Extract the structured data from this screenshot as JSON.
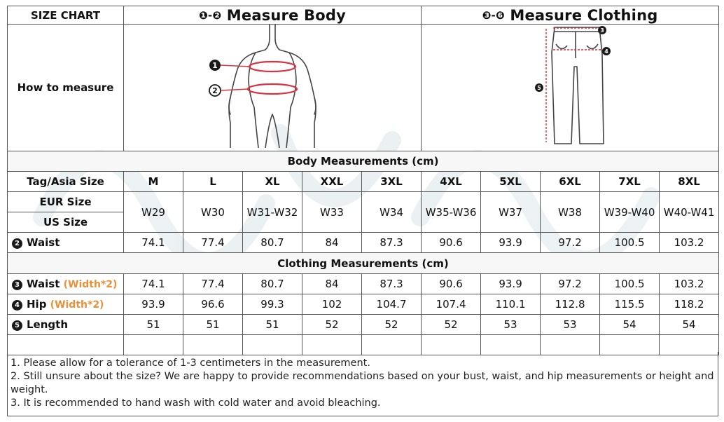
{
  "header": {
    "size_chart": "SIZE CHART",
    "body_num": "❶-❷",
    "body_title": "Measure Body",
    "clothing_num": "❸-❻",
    "clothing_title": "Measure Clothing"
  },
  "how_to_measure": "How to measure",
  "body_figure": {
    "marker_1": "1",
    "marker_2": "2"
  },
  "pants_figure": {
    "marker_3": "3",
    "marker_4": "4",
    "marker_5": "5"
  },
  "body_section_title": "Body Measurements (cm)",
  "clothing_section_title": "Clothing Measurements  (cm)",
  "size_row": {
    "label": "Tag/Asia Size",
    "values": [
      "M",
      "L",
      "XL",
      "XXL",
      "3XL",
      "4XL",
      "5XL",
      "6XL",
      "7XL",
      "8XL"
    ]
  },
  "eur_label": "EUR Size",
  "us_label": "US Size",
  "eur_us_values": [
    "W29",
    "W30",
    "W31-W32",
    "W33",
    "W34",
    "W35-W36",
    "W37",
    "W38",
    "W39-W40",
    "W40-W41"
  ],
  "body_waist": {
    "num": "2",
    "label": "Waist",
    "values": [
      "74.1",
      "77.4",
      "80.7",
      "84",
      "87.3",
      "90.6",
      "93.9",
      "97.2",
      "100.5",
      "103.2"
    ]
  },
  "clothing_waist": {
    "num": "3",
    "label": "Waist",
    "note": "(Width*2)",
    "values": [
      "74.1",
      "77.4",
      "80.7",
      "84",
      "87.3",
      "90.6",
      "93.9",
      "97.2",
      "100.5",
      "103.2"
    ]
  },
  "clothing_hip": {
    "num": "4",
    "label": "Hip",
    "note": "(Width*2)",
    "values": [
      "93.9",
      "96.6",
      "99.3",
      "102",
      "104.7",
      "107.4",
      "110.1",
      "112.8",
      "115.5",
      "118.2"
    ]
  },
  "clothing_length": {
    "num": "5",
    "label": "Length",
    "values": [
      "51",
      "51",
      "51",
      "52",
      "52",
      "52",
      "53",
      "53",
      "54",
      "54"
    ]
  },
  "notes": [
    "1. Please allow for a tolerance of 1-3 centimeters in the measurement.",
    "2. Still unsure about the size? We are happy to provide recommendations based on your bust, waist, and hip measurements or height and weight.",
    "3. It is recommended to hand wash with cold water and avoid bleaching."
  ],
  "colors": {
    "measure_line": "#d9333f",
    "orange_note": "#e8913a",
    "border": "#555555"
  }
}
